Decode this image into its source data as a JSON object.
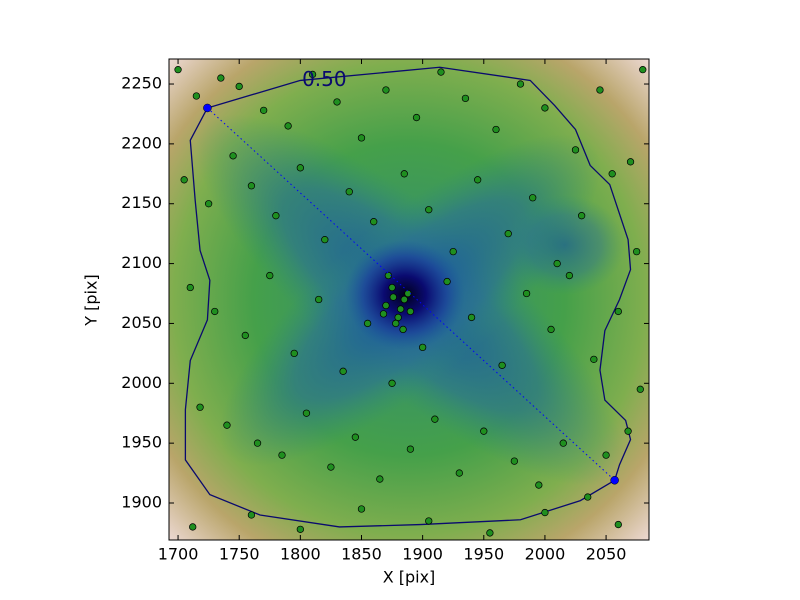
{
  "chart_data": {
    "type": "scatter",
    "xlabel": "X [pix]",
    "ylabel": "Y [pix]",
    "xlim": [
      1692.6,
      2085.1
    ],
    "ylim": [
      1869.1,
      2270.9
    ],
    "xticks": [
      1700,
      1750,
      1800,
      1850,
      1900,
      1950,
      2000,
      2050
    ],
    "yticks": [
      1900,
      1950,
      2000,
      2050,
      2100,
      2150,
      2200,
      2250
    ],
    "color": "#1f8f1f",
    "x": [
      1700,
      1715,
      1735,
      1750,
      1770,
      1790,
      1810,
      1830,
      1850,
      1870,
      1895,
      1915,
      1935,
      1960,
      1980,
      2000,
      2025,
      2045,
      2070,
      2080,
      1705,
      1725,
      1745,
      1760,
      1780,
      1800,
      1820,
      1840,
      1860,
      1885,
      1905,
      1925,
      1945,
      1970,
      1990,
      2010,
      2030,
      2055,
      2075,
      1710,
      1730,
      1755,
      1775,
      1795,
      1815,
      1835,
      1855,
      1875,
      1900,
      1920,
      1940,
      1965,
      1985,
      2005,
      2020,
      2040,
      2060,
      2078,
      1718,
      1740,
      1765,
      1785,
      1805,
      1825,
      1845,
      1865,
      1890,
      1910,
      1930,
      1950,
      1975,
      1995,
      2015,
      2035,
      2050,
      2068,
      1870,
      1875,
      1880,
      1885,
      1890,
      1878,
      1872,
      1884,
      1888,
      1868,
      1876,
      1882,
      1712,
      1760,
      1800,
      1850,
      1905,
      1955,
      2000,
      2060
    ],
    "y": [
      2262,
      2240,
      2255,
      2248,
      2228,
      2215,
      2258,
      2235,
      2205,
      2245,
      2222,
      2260,
      2238,
      2212,
      2250,
      2230,
      2195,
      2245,
      2185,
      2262,
      2170,
      2150,
      2190,
      2165,
      2140,
      2180,
      2120,
      2160,
      2135,
      2175,
      2145,
      2110,
      2170,
      2125,
      2155,
      2100,
      2140,
      2175,
      2110,
      2080,
      2060,
      2040,
      2090,
      2025,
      2070,
      2010,
      2050,
      2000,
      2030,
      2085,
      2055,
      2015,
      2075,
      2045,
      2090,
      2020,
      2060,
      1995,
      1980,
      1965,
      1950,
      1940,
      1975,
      1930,
      1955,
      1920,
      1945,
      1970,
      1925,
      1960,
      1935,
      1915,
      1950,
      1905,
      1940,
      1960,
      2065,
      2080,
      2055,
      2070,
      2060,
      2050,
      2090,
      2045,
      2075,
      2058,
      2072,
      2062,
      1880,
      1890,
      1878,
      1895,
      1885,
      1875,
      1892,
      1882
    ],
    "endpoints": {
      "x": [
        1724,
        2057
      ],
      "y": [
        2230,
        1919
      ],
      "color": "#0000ff"
    },
    "contour": {
      "label": "0.50",
      "color": "#0a0a6e",
      "x": [
        1724,
        1800,
        1914,
        1988,
        2008,
        2025,
        2037,
        2053,
        2068,
        2070,
        2061,
        2049,
        2045,
        2049,
        2066,
        2070,
        2061,
        2057,
        2029,
        1980,
        1898,
        1832,
        1767,
        1726,
        1706,
        1706,
        1710,
        1724,
        1726,
        1718,
        1714,
        1710
      ],
      "y": [
        2230,
        2253,
        2264,
        2253,
        2232,
        2212,
        2182,
        2166,
        2120,
        2095,
        2070,
        2044,
        2011,
        1986,
        1969,
        1953,
        1932,
        1919,
        1902,
        1886,
        1882,
        1880,
        1890,
        1907,
        1936,
        1978,
        2019,
        2053,
        2086,
        2111,
        2153,
        2203
      ]
    }
  }
}
